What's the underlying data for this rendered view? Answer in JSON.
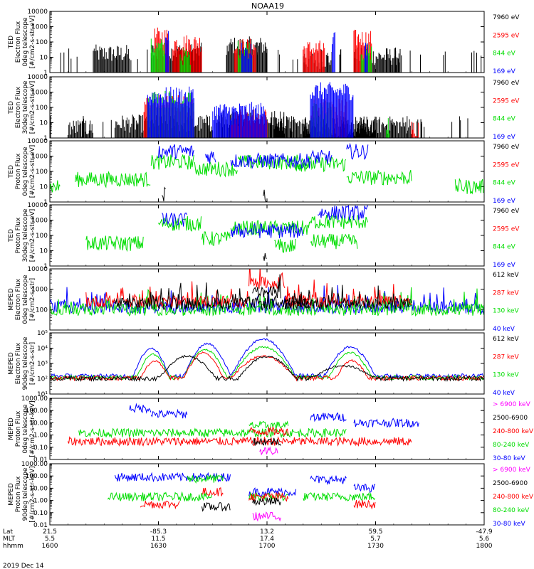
{
  "title": "NOAA19",
  "date": "2019 Dec 14",
  "bottom_axis": {
    "row_labels": [
      "Lat",
      "MLT",
      "hhmm"
    ],
    "ticks": [
      {
        "lat": "21.5",
        "mlt": "5.5",
        "hhmm": "1600"
      },
      {
        "lat": "-85.3",
        "mlt": "11.5",
        "hhmm": "1630"
      },
      {
        "lat": "13.2",
        "mlt": "17.4",
        "hhmm": "1700"
      },
      {
        "lat": "59.5",
        "mlt": "5.7",
        "hhmm": "1730"
      },
      {
        "lat": "-47.9",
        "mlt": "5.6",
        "hhmm": "1800"
      }
    ]
  },
  "colors": {
    "black": "#000000",
    "red": "#ff0000",
    "green": "#00dd00",
    "blue": "#0000ff",
    "magenta": "#ff00ff"
  },
  "chart_data": [
    {
      "type": "line",
      "ylabel": [
        "TED",
        "Electron Flux",
        "0deg telescope",
        "[#/cm2-s-str-eV]"
      ],
      "yscale": "log",
      "ylim": [
        1,
        10000
      ],
      "yticks": [
        "1",
        "10",
        "100",
        "1000",
        "10000"
      ],
      "xlim": [
        "1600",
        "1800"
      ],
      "legend": [
        {
          "label": "7960 eV",
          "color": "#000000"
        },
        {
          "label": "2595 eV",
          "color": "#ff0000"
        },
        {
          "label": "844 eV",
          "color": "#00dd00"
        },
        {
          "label": "169 eV",
          "color": "#0000ff"
        }
      ],
      "style": "spiky",
      "series": [
        {
          "color": "#000000",
          "bursts": [
            [
              1612,
              1622,
              30
            ],
            [
              1628,
              1642,
              40
            ],
            [
              1649,
              1660,
              100
            ],
            [
              1710,
              1718,
              12
            ],
            [
              1724,
              1737,
              20
            ]
          ],
          "base": 6
        },
        {
          "color": "#ff0000",
          "bursts": [
            [
              1629,
              1633,
              400
            ],
            [
              1634,
              1642,
              150
            ],
            [
              1651,
              1657,
              80
            ],
            [
              1710,
              1716,
              60
            ],
            [
              1724,
              1729,
              300
            ]
          ],
          "base": 0
        },
        {
          "color": "#00dd00",
          "bursts": [
            [
              1628,
              1632,
              80
            ],
            [
              1636,
              1639,
              20
            ],
            [
              1652,
              1656,
              60
            ],
            [
              1726,
              1729,
              40
            ]
          ],
          "base": 0
        },
        {
          "color": "#0000ff",
          "bursts": [
            [
              1632,
              1633,
              400
            ],
            [
              1653,
              1656,
              50
            ],
            [
              1718,
              1719,
              300
            ],
            [
              1727,
              1728,
              60
            ]
          ],
          "base": 0
        }
      ]
    },
    {
      "type": "line",
      "ylabel": [
        "TED",
        "Electron Flux",
        "30deg telescope",
        "[#/cm2-s-str-eV]"
      ],
      "yscale": "log",
      "ylim": [
        1,
        10000
      ],
      "yticks": [
        "1",
        "10",
        "100",
        "1000",
        "10000"
      ],
      "xlim": [
        "1600",
        "1800"
      ],
      "legend": [
        {
          "label": "7960 eV",
          "color": "#000000"
        },
        {
          "label": "2595 eV",
          "color": "#ff0000"
        },
        {
          "label": "844 eV",
          "color": "#00dd00"
        },
        {
          "label": "169 eV",
          "color": "#0000ff"
        }
      ],
      "style": "spiky",
      "series": [
        {
          "color": "#000000",
          "bursts": [
            [
              1605,
              1612,
              8
            ],
            [
              1618,
              1645,
              15
            ],
            [
              1646,
              1665,
              30
            ],
            [
              1670,
              1690,
              8
            ],
            [
              1702,
              1740,
              12
            ]
          ],
          "base": 5
        },
        {
          "color": "#ff0000",
          "bursts": [
            [
              1626,
              1640,
              300
            ],
            [
              1650,
              1660,
              40
            ],
            [
              1712,
              1722,
              200
            ],
            [
              1740,
              1742,
              8
            ]
          ],
          "base": 0
        },
        {
          "color": "#00dd00",
          "bursts": [
            [
              1627,
              1640,
              600
            ],
            [
              1712,
              1718,
              100
            ],
            [
              1733,
              1734,
              10
            ]
          ],
          "base": 0
        },
        {
          "color": "#0000ff",
          "bursts": [
            [
              1627,
              1640,
              1000
            ],
            [
              1645,
              1660,
              100
            ],
            [
              1712,
              1724,
              2000
            ]
          ],
          "base": 0
        }
      ]
    },
    {
      "type": "line",
      "ylabel": [
        "TED",
        "Proton Flux",
        "0deg telescope",
        "[#/cm2-s-str-eV]"
      ],
      "yscale": "log",
      "ylim": [
        1,
        10000
      ],
      "yticks": [
        "1",
        "10",
        "100",
        "1000",
        "10000"
      ],
      "xlim": [
        "1600",
        "1800"
      ],
      "legend": [
        {
          "label": "7960 eV",
          "color": "#000000"
        },
        {
          "label": "2595 eV",
          "color": "#ff0000"
        },
        {
          "label": "844 eV",
          "color": "#00dd00"
        },
        {
          "label": "169 eV",
          "color": "#0000ff"
        }
      ],
      "style": "dense",
      "series": [
        {
          "color": "#00dd00",
          "segments": [
            [
              1600,
              1603,
              10
            ],
            [
              1607,
              1628,
              30
            ],
            [
              1628,
              1640,
              400
            ],
            [
              1640,
              1652,
              150
            ],
            [
              1652,
              1672,
              400
            ],
            [
              1672,
              1706,
              200
            ],
            [
              1706,
              1722,
              300
            ],
            [
              1722,
              1740,
              40
            ],
            [
              1752,
              1760,
              10
            ],
            [
              1790,
              1800,
              10
            ]
          ]
        },
        {
          "color": "#0000ff",
          "segments": [
            [
              1630,
              1640,
              2000
            ],
            [
              1643,
              1646,
              1000
            ],
            [
              1650,
              1672,
              500
            ],
            [
              1712,
              1718,
              800
            ],
            [
              1722,
              1728,
              2000
            ]
          ]
        },
        {
          "color": "#000000",
          "segments": [
            [
              1631,
              1632,
              3
            ],
            [
              1659,
              1660,
              3
            ]
          ]
        }
      ]
    },
    {
      "type": "line",
      "ylabel": [
        "TED",
        "Proton Flux",
        "30deg telescope",
        "[#/cm2-s-str-eV]"
      ],
      "yscale": "log",
      "ylim": [
        1,
        10000
      ],
      "yticks": [
        "1",
        "10",
        "100",
        "1000",
        "10000"
      ],
      "xlim": [
        "1600",
        "1800"
      ],
      "legend": [
        {
          "label": "7960 eV",
          "color": "#000000"
        },
        {
          "label": "2595 eV",
          "color": "#ff0000"
        },
        {
          "label": "844 eV",
          "color": "#00dd00"
        },
        {
          "label": "169 eV",
          "color": "#0000ff"
        }
      ],
      "style": "dense",
      "series": [
        {
          "color": "#00dd00",
          "segments": [
            [
              1610,
              1626,
              30
            ],
            [
              1630,
              1642,
              600
            ],
            [
              1642,
              1650,
              60
            ],
            [
              1650,
              1672,
              300
            ],
            [
              1672,
              1685,
              40
            ],
            [
              1702,
              1708,
              20
            ],
            [
              1712,
              1728,
              800
            ],
            [
              1795,
              1800,
              15
            ]
          ]
        },
        {
          "color": "#0000ff",
          "segments": [
            [
              1631,
              1638,
              1000
            ],
            [
              1650,
              1670,
              200
            ],
            [
              1714,
              1728,
              3000
            ]
          ]
        },
        {
          "color": "#000000",
          "segments": [
            [
              1659,
              1660,
              3
            ]
          ]
        }
      ]
    },
    {
      "type": "line",
      "ylabel": [
        "MEPED",
        "Electron Flux",
        "0deg telescope",
        "[#/cm2-s-str]"
      ],
      "yscale": "log",
      "ylim": [
        10,
        10000
      ],
      "yticks": [
        "100",
        "1000",
        "10000"
      ],
      "xlim": [
        "1600",
        "1800"
      ],
      "legend": [
        {
          "label": "612 keV",
          "color": "#000000"
        },
        {
          "label": "287 keV",
          "color": "#ff0000"
        },
        {
          "label": "130 keV",
          "color": "#00dd00"
        },
        {
          "label": "40 keV",
          "color": "#0000ff"
        }
      ],
      "style": "noisy",
      "series": [
        {
          "color": "#0000ff",
          "segments": [
            [
              1600,
              1800,
              130
            ]
          ]
        },
        {
          "color": "#00dd00",
          "segments": [
            [
              1600,
              1800,
              100
            ]
          ]
        },
        {
          "color": "#ff0000",
          "segments": [
            [
              1610,
              1655,
              250
            ],
            [
              1655,
              1665,
              2000
            ],
            [
              1665,
              1672,
              250
            ],
            [
              1705,
              1740,
              250
            ]
          ]
        },
        {
          "color": "#000000",
          "segments": [
            [
              1618,
              1672,
              200
            ],
            [
              1656,
              1664,
              700
            ],
            [
              1705,
              1740,
              200
            ]
          ]
        }
      ]
    },
    {
      "type": "line",
      "ylabel": [
        "MEPED",
        "Electron Flux",
        "90deg telescope",
        "[#/cm2-s-str]"
      ],
      "yscale": "log",
      "ylim": [
        10,
        100000
      ],
      "yticks": [
        "10¹",
        "10²",
        "10³",
        "10⁴",
        "10⁵"
      ],
      "xlim": [
        "1600",
        "1800"
      ],
      "legend": [
        {
          "label": "612 keV",
          "color": "#000000"
        },
        {
          "label": "287 keV",
          "color": "#ff0000"
        },
        {
          "label": "130 keV",
          "color": "#00dd00"
        },
        {
          "label": "40 keV",
          "color": "#0000ff"
        }
      ],
      "style": "humps",
      "series": [
        {
          "color": "#0000ff",
          "humps": [
            [
              1623,
              1633,
              10000
            ],
            [
              1637,
              1650,
              20000
            ],
            [
              1650,
              1668,
              40000
            ],
            [
              1716,
              1730,
              12000
            ]
          ],
          "base": 150
        },
        {
          "color": "#00dd00",
          "humps": [
            [
              1624,
              1633,
              4000
            ],
            [
              1637,
              1649,
              8000
            ],
            [
              1650,
              1668,
              12000
            ],
            [
              1717,
              1729,
              5000
            ]
          ],
          "base": 120
        },
        {
          "color": "#ff0000",
          "humps": [
            [
              1625,
              1633,
              1500
            ],
            [
              1637,
              1648,
              5000
            ],
            [
              1650,
              1668,
              3000
            ],
            [
              1719,
              1728,
              1500
            ]
          ],
          "base": 110
        },
        {
          "color": "#000000",
          "humps": [
            [
              1630,
              1646,
              3000
            ],
            [
              1652,
              1668,
              3000
            ],
            [
              1712,
              1730,
              700
            ]
          ],
          "base": 105
        }
      ]
    },
    {
      "type": "line",
      "ylabel": [
        "MEPED",
        "Proton Flux",
        "0deg telescope",
        "[#/cm2-s-str-keV]"
      ],
      "yscale": "log",
      "ylim": [
        0.01,
        1000
      ],
      "yticks": [
        "0.01",
        "0.10",
        "1.00",
        "10.00",
        "100.00",
        "1000.00"
      ],
      "xlim": [
        "1600",
        "1800"
      ],
      "legend": [
        {
          "label": "> 6900 keV",
          "color": "#ff00ff"
        },
        {
          "label": "2500-6900",
          "color": "#000000"
        },
        {
          "label": "240-800 keV",
          "color": "#ff0000"
        },
        {
          "label": "80-240 keV",
          "color": "#00dd00"
        },
        {
          "label": "30-80 keV",
          "color": "#0000ff"
        }
      ],
      "style": "proton",
      "series": [
        {
          "color": "#0000ff",
          "segments": [
            [
              1622,
              1628,
              150
            ],
            [
              1628,
              1638,
              50
            ],
            [
              1712,
              1722,
              30
            ],
            [
              1724,
              1742,
              10
            ]
          ]
        },
        {
          "color": "#00dd00",
          "segments": [
            [
              1608,
              1722,
              1.5
            ],
            [
              1655,
              1666,
              6
            ]
          ]
        },
        {
          "color": "#ff0000",
          "segments": [
            [
              1605,
              1740,
              0.3
            ],
            [
              1655,
              1666,
              2
            ]
          ]
        },
        {
          "color": "#000000",
          "segments": [
            [
              1656,
              1664,
              0.3
            ]
          ]
        },
        {
          "color": "#ff00ff",
          "segments": [
            [
              1658,
              1663,
              0.05
            ]
          ]
        }
      ]
    },
    {
      "type": "line",
      "ylabel": [
        "MEPED",
        "Proton Flux",
        "90deg telescope",
        "[#/cm2-s-str-keV]"
      ],
      "yscale": "log",
      "ylim": [
        0.01,
        1000
      ],
      "yticks": [
        "0.01",
        "0.10",
        "1.00",
        "10.00",
        "100.00",
        "1000.00"
      ],
      "xlim": [
        "1600",
        "1800"
      ],
      "legend": [
        {
          "label": "> 6900 keV",
          "color": "#ff00ff"
        },
        {
          "label": "2500-6900",
          "color": "#000000"
        },
        {
          "label": "240-800 keV",
          "color": "#ff0000"
        },
        {
          "label": "80-240 keV",
          "color": "#00dd00"
        },
        {
          "label": "30-80 keV",
          "color": "#0000ff"
        }
      ],
      "style": "proton",
      "series": [
        {
          "color": "#0000ff",
          "segments": [
            [
              1618,
              1650,
              80
            ],
            [
              1655,
              1668,
              5
            ],
            [
              1712,
              1722,
              50
            ],
            [
              1724,
              1730,
              10
            ]
          ]
        },
        {
          "color": "#00dd00",
          "segments": [
            [
              1616,
              1645,
              2
            ],
            [
              1638,
              1648,
              60
            ],
            [
              1655,
              1666,
              2
            ],
            [
              1710,
              1730,
              2
            ]
          ]
        },
        {
          "color": "#ff0000",
          "segments": [
            [
              1625,
              1636,
              0.5
            ],
            [
              1642,
              1648,
              5
            ],
            [
              1655,
              1666,
              2
            ],
            [
              1724,
              1730,
              0.5
            ]
          ]
        },
        {
          "color": "#000000",
          "segments": [
            [
              1642,
              1650,
              0.3
            ],
            [
              1656,
              1664,
              0.8
            ]
          ]
        },
        {
          "color": "#ff00ff",
          "segments": [
            [
              1656,
              1664,
              0.05
            ]
          ]
        }
      ]
    }
  ]
}
